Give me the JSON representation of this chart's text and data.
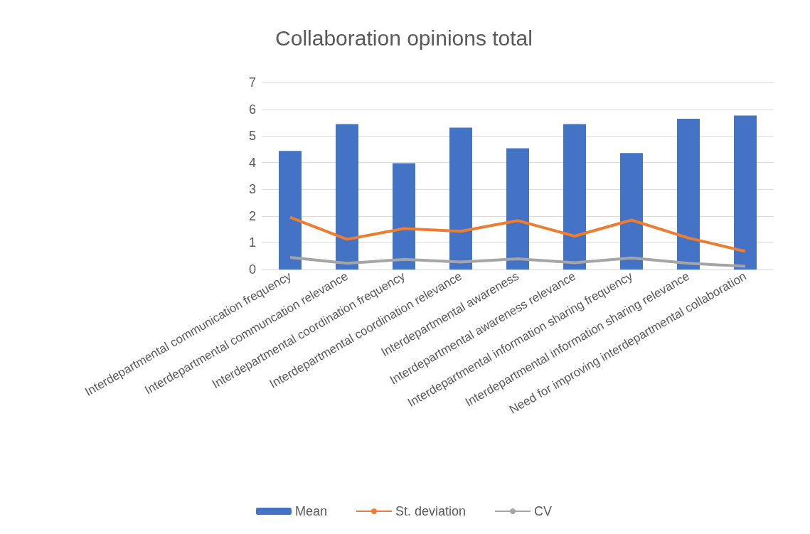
{
  "chart_data": {
    "type": "bar",
    "title": "Collaboration opinions total",
    "categories": [
      "Interdepartmental communication frequency",
      "Interdepartmental communcation relevance",
      "Interdepartmental coordination frequency",
      "Interdepartmental coordination relevance",
      "Interdepartmental awareness",
      "Interdepartmental awareness relevance",
      "Interdepartmental information sharing frequency",
      "Interdepartmental information sharing relevance",
      "Need for improving interdepartmental collaboration"
    ],
    "series": [
      {
        "name": "Mean",
        "color": "#4472c4",
        "values": [
          4.44,
          5.44,
          3.98,
          5.31,
          4.54,
          5.44,
          4.36,
          5.64,
          5.76
        ]
      },
      {
        "name": "St. deviation",
        "type": "line",
        "color": "#ed7d31",
        "values": [
          1.95,
          1.13,
          1.53,
          1.43,
          1.83,
          1.25,
          1.85,
          1.18,
          0.68
        ]
      },
      {
        "name": "CV",
        "type": "line",
        "color": "#a5a5a5",
        "values": [
          0.45,
          0.23,
          0.38,
          0.28,
          0.4,
          0.25,
          0.43,
          0.23,
          0.12
        ]
      }
    ],
    "ylim": [
      0,
      7
    ],
    "yticks": [
      0,
      1,
      2,
      3,
      4,
      5,
      6,
      7
    ],
    "grid": "y",
    "legend": "bottom",
    "marker": "none"
  }
}
